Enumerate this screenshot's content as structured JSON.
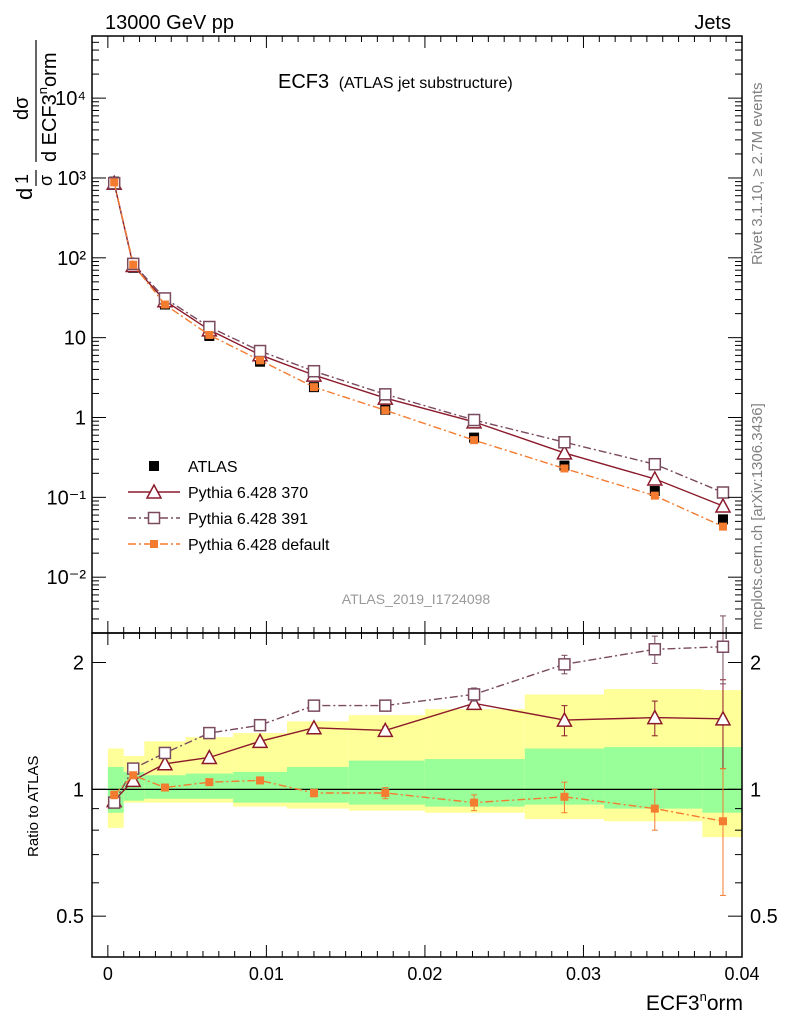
{
  "header": {
    "left": "13000 GeV pp",
    "right": "Jets"
  },
  "plot_title": {
    "main": "ECF3",
    "sub": "(ATLAS jet substructure)"
  },
  "analysis_id": "ATLAS_2019_I1724098",
  "side_labels": {
    "top": "Rivet 3.1.10, ≥ 2.7M events",
    "bottom": "mcplots.cern.ch [arXiv:1306.3436]"
  },
  "y_axis_label_main": {
    "frac1": "1",
    "den1": "σ",
    "dsig": "dσ",
    "den2": "d ECF3",
    "sup": "n",
    "orm": "orm",
    "d": "d"
  },
  "x_axis_label": {
    "base": "ECF3",
    "sup": "n",
    "rest": "orm"
  },
  "ratio_ylabel": "Ratio to ATLAS",
  "main_yticks": [
    "10⁻²",
    "10⁻¹",
    "1",
    "10",
    "10²",
    "10³",
    "10⁴"
  ],
  "ratio_yticks": [
    "0.5",
    "1",
    "2"
  ],
  "x_ticks": [
    "0",
    "0.01",
    "0.02",
    "0.03",
    "0.04"
  ],
  "legend": [
    {
      "label": "ATLAS",
      "color": "#000000"
    },
    {
      "label": "Pythia 6.428 370",
      "color": "#8b1a2b"
    },
    {
      "label": "Pythia 6.428 391",
      "color": "#7a4a5f"
    },
    {
      "label": "Pythia 6.428 default",
      "color": "#f47c30"
    }
  ],
  "chart_data": {
    "type": "scatter",
    "xlabel": "ECF3norm",
    "xlim": [
      -0.001,
      0.04
    ],
    "main": {
      "ylabel": "1/sigma dsigma/dECF3norm",
      "yscale": "log",
      "ylim": [
        0.002,
        60000
      ],
      "x": [
        0.0004,
        0.0016,
        0.0036,
        0.0064,
        0.0096,
        0.013,
        0.0175,
        0.0231,
        0.0288,
        0.0345,
        0.0388
      ],
      "series": [
        {
          "name": "ATLAS",
          "values": [
            900,
            75,
            26,
            10.5,
            5.0,
            2.4,
            1.25,
            0.56,
            0.25,
            0.12,
            0.053
          ]
        },
        {
          "name": "Pythia 6.428 370",
          "values": [
            860,
            80,
            29,
            12.5,
            6.1,
            3.4,
            1.75,
            0.88,
            0.36,
            0.17,
            0.078
          ]
        },
        {
          "name": "Pythia 6.428 391",
          "values": [
            860,
            84,
            31,
            13.6,
            6.8,
            3.8,
            1.95,
            0.93,
            0.49,
            0.26,
            0.115
          ]
        },
        {
          "name": "Pythia 6.428 default",
          "values": [
            880,
            82,
            26,
            10.8,
            5.2,
            2.4,
            1.23,
            0.52,
            0.23,
            0.105,
            0.043
          ]
        }
      ]
    },
    "ratio": {
      "ylabel": "Ratio to ATLAS",
      "yscale": "log",
      "ylim": [
        0.4,
        2.35
      ],
      "x": [
        0.0004,
        0.0016,
        0.0036,
        0.0064,
        0.0096,
        0.013,
        0.0175,
        0.0231,
        0.0288,
        0.0345,
        0.0388
      ],
      "series": [
        {
          "name": "Pythia 6.428 370",
          "values": [
            0.94,
            1.05,
            1.15,
            1.19,
            1.3,
            1.4,
            1.38,
            1.6,
            1.46,
            1.48,
            1.47
          ],
          "err": [
            0.02,
            0.01,
            0.01,
            0.01,
            0.02,
            0.02,
            0.03,
            0.05,
            0.12,
            0.14,
            0.35
          ]
        },
        {
          "name": "Pythia 6.428 391",
          "values": [
            0.93,
            1.12,
            1.22,
            1.36,
            1.42,
            1.58,
            1.58,
            1.68,
            1.98,
            2.15,
            2.18
          ],
          "err": [
            0.02,
            0.01,
            0.01,
            0.02,
            0.02,
            0.03,
            0.04,
            0.06,
            0.1,
            0.16,
            0.4
          ]
        },
        {
          "name": "Pythia 6.428 default",
          "values": [
            0.97,
            1.08,
            1.01,
            1.04,
            1.05,
            0.98,
            0.98,
            0.93,
            0.96,
            0.9,
            0.84
          ],
          "err": [
            0.02,
            0.01,
            0.01,
            0.01,
            0.02,
            0.02,
            0.03,
            0.04,
            0.08,
            0.1,
            0.28
          ]
        }
      ],
      "bands": {
        "x_edges": [
          0,
          0.001,
          0.0023,
          0.0049,
          0.0079,
          0.0113,
          0.0152,
          0.02,
          0.0263,
          0.0313,
          0.0375,
          0.04
        ],
        "inner_lo": [
          0.88,
          0.94,
          0.95,
          0.95,
          0.93,
          0.93,
          0.92,
          0.91,
          0.92,
          0.9,
          0.88
        ],
        "inner_hi": [
          1.13,
          1.1,
          1.08,
          1.09,
          1.1,
          1.13,
          1.17,
          1.18,
          1.25,
          1.26,
          1.26
        ],
        "outer_lo": [
          0.81,
          0.93,
          0.93,
          0.93,
          0.91,
          0.9,
          0.89,
          0.88,
          0.85,
          0.84,
          0.77
        ],
        "outer_hi": [
          1.25,
          1.2,
          1.3,
          1.33,
          1.36,
          1.45,
          1.5,
          1.55,
          1.68,
          1.73,
          1.72
        ]
      }
    }
  }
}
